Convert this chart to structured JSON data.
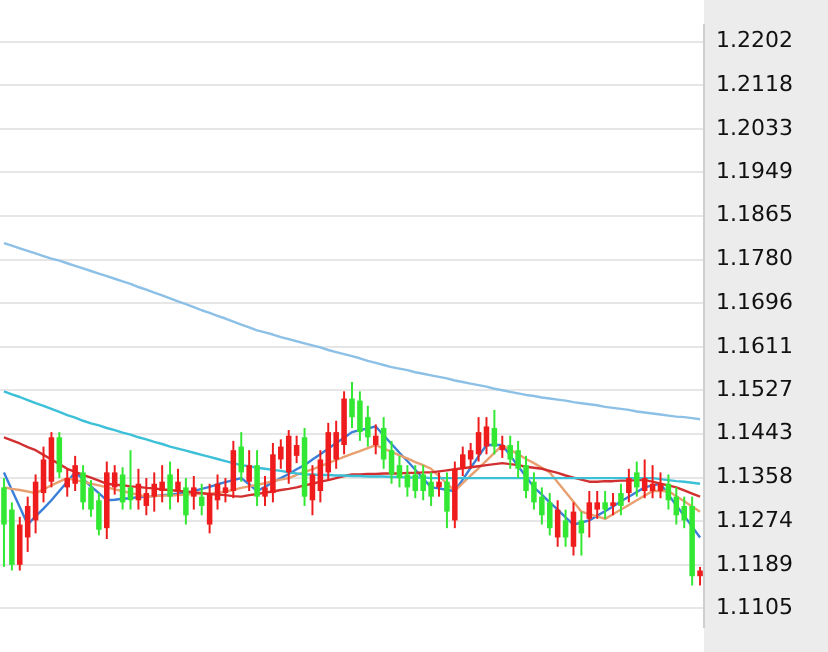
{
  "chart_data": {
    "type": "candlestick",
    "categories": [
      null,
      null,
      null,
      null,
      null,
      null,
      null,
      null,
      null,
      null,
      null,
      null,
      null,
      null,
      null,
      null,
      null,
      null,
      null,
      null,
      null,
      null,
      null,
      null,
      null,
      null,
      null,
      null,
      null,
      null,
      null,
      null,
      null,
      null,
      null,
      null,
      null,
      null,
      null,
      null,
      null,
      null,
      null,
      null,
      null,
      null,
      null,
      null,
      null,
      null,
      null,
      null,
      null,
      null,
      null,
      null,
      null,
      null,
      null,
      null,
      null,
      null,
      null,
      null,
      null,
      null,
      null,
      null,
      null,
      null,
      null,
      null,
      null,
      null,
      null,
      null,
      null,
      null,
      null,
      null,
      null,
      null,
      null,
      null,
      null,
      null,
      null,
      null,
      null
    ],
    "ohlc": [
      [
        1.1339,
        1.1357,
        1.1185,
        1.1267
      ],
      [
        1.1296,
        1.131,
        1.1178,
        1.1189
      ],
      [
        1.1189,
        1.1282,
        1.1178,
        1.1267
      ],
      [
        1.1242,
        1.1321,
        1.1214,
        1.1303
      ],
      [
        1.1275,
        1.1364,
        1.125,
        1.135
      ],
      [
        1.1328,
        1.1418,
        1.131,
        1.1393
      ],
      [
        1.135,
        1.1446,
        1.1339,
        1.1436
      ],
      [
        1.1436,
        1.1446,
        1.1357,
        1.1368
      ],
      [
        1.1339,
        1.1375,
        1.1321,
        1.1357
      ],
      [
        1.1346,
        1.14,
        1.1332,
        1.1382
      ],
      [
        1.1368,
        1.1382,
        1.1296,
        1.131
      ],
      [
        1.1339,
        1.1353,
        1.1282,
        1.1296
      ],
      [
        1.1314,
        1.1328,
        1.1246,
        1.1257
      ],
      [
        1.126,
        1.1389,
        1.1239,
        1.1368
      ],
      [
        1.1339,
        1.1382,
        1.1325,
        1.1368
      ],
      [
        1.1364,
        1.1378,
        1.1296,
        1.131
      ],
      [
        1.1339,
        1.1411,
        1.1296,
        1.1314
      ],
      [
        1.1314,
        1.1375,
        1.1296,
        1.1346
      ],
      [
        1.1303,
        1.1357,
        1.1285,
        1.1328
      ],
      [
        1.1321,
        1.1368,
        1.1292,
        1.1346
      ],
      [
        1.1332,
        1.1382,
        1.131,
        1.135
      ],
      [
        1.1364,
        1.1389,
        1.1296,
        1.1321
      ],
      [
        1.1332,
        1.1375,
        1.131,
        1.135
      ],
      [
        1.1339,
        1.1357,
        1.1267,
        1.1285
      ],
      [
        1.1321,
        1.1361,
        1.1296,
        1.1339
      ],
      [
        1.1321,
        1.1346,
        1.1285,
        1.1303
      ],
      [
        1.1267,
        1.1346,
        1.125,
        1.1328
      ],
      [
        1.1314,
        1.1364,
        1.1296,
        1.1346
      ],
      [
        1.1328,
        1.1357,
        1.131,
        1.1339
      ],
      [
        1.1332,
        1.1429,
        1.1318,
        1.1411
      ],
      [
        1.1418,
        1.1446,
        1.135,
        1.1368
      ],
      [
        1.135,
        1.1411,
        1.1332,
        1.1382
      ],
      [
        1.1382,
        1.1411,
        1.1303,
        1.1321
      ],
      [
        1.1321,
        1.1361,
        1.1303,
        1.1339
      ],
      [
        1.1328,
        1.1425,
        1.131,
        1.1403
      ],
      [
        1.1393,
        1.1432,
        1.1375,
        1.1418
      ],
      [
        1.1368,
        1.145,
        1.1346,
        1.1439
      ],
      [
        1.14,
        1.1439,
        1.1386,
        1.1421
      ],
      [
        1.1436,
        1.1454,
        1.1303,
        1.1321
      ],
      [
        1.1314,
        1.1382,
        1.1285,
        1.1364
      ],
      [
        1.1332,
        1.1411,
        1.131,
        1.1393
      ],
      [
        1.1368,
        1.1464,
        1.1353,
        1.1446
      ],
      [
        1.1393,
        1.1468,
        1.1375,
        1.1446
      ],
      [
        1.1421,
        1.1525,
        1.1403,
        1.1511
      ],
      [
        1.1511,
        1.1543,
        1.1454,
        1.1475
      ],
      [
        1.1507,
        1.1525,
        1.1429,
        1.1446
      ],
      [
        1.1475,
        1.1497,
        1.1418,
        1.1436
      ],
      [
        1.1421,
        1.1461,
        1.1403,
        1.1439
      ],
      [
        1.1454,
        1.1475,
        1.1375,
        1.1393
      ],
      [
        1.1411,
        1.1429,
        1.1346,
        1.1364
      ],
      [
        1.1382,
        1.14,
        1.1339,
        1.1357
      ],
      [
        1.1364,
        1.1382,
        1.1321,
        1.1339
      ],
      [
        1.1364,
        1.1382,
        1.1318,
        1.1332
      ],
      [
        1.1364,
        1.1382,
        1.1314,
        1.1332
      ],
      [
        1.135,
        1.1368,
        1.1303,
        1.1321
      ],
      [
        1.1339,
        1.1368,
        1.1321,
        1.135
      ],
      [
        1.135,
        1.1368,
        1.126,
        1.1292
      ],
      [
        1.1275,
        1.1389,
        1.126,
        1.1375
      ],
      [
        1.1375,
        1.1418,
        1.1361,
        1.1403
      ],
      [
        1.1393,
        1.1425,
        1.1375,
        1.1411
      ],
      [
        1.1403,
        1.1475,
        1.1389,
        1.1446
      ],
      [
        1.1418,
        1.1475,
        1.1403,
        1.1457
      ],
      [
        1.1454,
        1.1489,
        1.1403,
        1.1418
      ],
      [
        1.1411,
        1.1439,
        1.1396,
        1.1421
      ],
      [
        1.1421,
        1.1439,
        1.1375,
        1.1393
      ],
      [
        1.1411,
        1.1429,
        1.1357,
        1.1375
      ],
      [
        1.1382,
        1.14,
        1.1318,
        1.1332
      ],
      [
        1.135,
        1.1368,
        1.1296,
        1.131
      ],
      [
        1.1321,
        1.1339,
        1.1267,
        1.1285
      ],
      [
        1.131,
        1.1328,
        1.1246,
        1.126
      ],
      [
        1.1242,
        1.1314,
        1.1224,
        1.1296
      ],
      [
        1.1275,
        1.1296,
        1.1224,
        1.1242
      ],
      [
        1.1224,
        1.131,
        1.1207,
        1.1292
      ],
      [
        1.1275,
        1.1292,
        1.1207,
        1.125
      ],
      [
        1.1278,
        1.1332,
        1.1242,
        1.131
      ],
      [
        1.1296,
        1.1332,
        1.1278,
        1.131
      ],
      [
        1.131,
        1.1332,
        1.1278,
        1.1296
      ],
      [
        1.1303,
        1.1328,
        1.1285,
        1.131
      ],
      [
        1.1328,
        1.1346,
        1.1285,
        1.1303
      ],
      [
        1.1328,
        1.1375,
        1.131,
        1.1357
      ],
      [
        1.1368,
        1.1389,
        1.1321,
        1.1339
      ],
      [
        1.1332,
        1.1393,
        1.1318,
        1.1357
      ],
      [
        1.1332,
        1.1382,
        1.1318,
        1.1346
      ],
      [
        1.1332,
        1.1368,
        1.1318,
        1.1346
      ],
      [
        1.1346,
        1.1364,
        1.1296,
        1.1314
      ],
      [
        1.1321,
        1.1339,
        1.1267,
        1.1285
      ],
      [
        1.1303,
        1.1321,
        1.126,
        1.1275
      ],
      [
        1.1303,
        1.1321,
        1.1149,
        1.1167
      ],
      [
        1.1167,
        1.1185,
        1.1149,
        1.1178
      ]
    ],
    "colors": [
      "#33e833",
      "#33e833",
      "#ee1c1c",
      "#ee1c1c",
      "#ee1c1c",
      "#ee1c1c",
      "#ee1c1c",
      "#33e833",
      "#ee1c1c",
      "#ee1c1c",
      "#33e833",
      "#33e833",
      "#33e833",
      "#ee1c1c",
      "#ee1c1c",
      "#33e833",
      "#33e833",
      "#ee1c1c",
      "#ee1c1c",
      "#ee1c1c",
      "#ee1c1c",
      "#33e833",
      "#ee1c1c",
      "#33e833",
      "#ee1c1c",
      "#33e833",
      "#ee1c1c",
      "#ee1c1c",
      "#ee1c1c",
      "#ee1c1c",
      "#33e833",
      "#ee1c1c",
      "#33e833",
      "#ee1c1c",
      "#ee1c1c",
      "#ee1c1c",
      "#ee1c1c",
      "#ee1c1c",
      "#33e833",
      "#ee1c1c",
      "#ee1c1c",
      "#ee1c1c",
      "#ee1c1c",
      "#ee1c1c",
      "#33e833",
      "#33e833",
      "#33e833",
      "#ee1c1c",
      "#33e833",
      "#33e833",
      "#33e833",
      "#33e833",
      "#33e833",
      "#33e833",
      "#33e833",
      "#ee1c1c",
      "#33e833",
      "#ee1c1c",
      "#ee1c1c",
      "#ee1c1c",
      "#ee1c1c",
      "#ee1c1c",
      "#33e833",
      "#ee1c1c",
      "#33e833",
      "#33e833",
      "#33e833",
      "#33e833",
      "#33e833",
      "#33e833",
      "#ee1c1c",
      "#33e833",
      "#ee1c1c",
      "#33e833",
      "#ee1c1c",
      "#ee1c1c",
      "#33e833",
      "#ee1c1c",
      "#33e833",
      "#ee1c1c",
      "#33e833",
      "#ee1c1c",
      "#ee1c1c",
      "#ee1c1c",
      "#33e833",
      "#33e833",
      "#33e833",
      "#33e833",
      "#ee1c1c"
    ],
    "series": [
      {
        "type": "line",
        "color": "#8cc0e6",
        "values": [
          1.1812,
          1.1807,
          1.1802,
          1.1797,
          1.1792,
          1.1787,
          1.1782,
          1.1778,
          1.1773,
          1.1768,
          1.1763,
          1.1758,
          1.1753,
          1.1748,
          1.1743,
          1.1738,
          1.1733,
          1.1727,
          1.1722,
          1.1716,
          1.1711,
          1.1705,
          1.1699,
          1.1694,
          1.1688,
          1.1682,
          1.1677,
          1.1671,
          1.1666,
          1.166,
          1.1654,
          1.1649,
          1.1643,
          1.1639,
          1.1635,
          1.163,
          1.1626,
          1.1622,
          1.1618,
          1.1614,
          1.161,
          1.1605,
          1.1601,
          1.1597,
          1.1593,
          1.1589,
          1.1584,
          1.158,
          1.1576,
          1.1572,
          1.1569,
          1.1566,
          1.1562,
          1.1559,
          1.1556,
          1.1553,
          1.155,
          1.1546,
          1.1543,
          1.154,
          1.1537,
          1.1534,
          1.153,
          1.1527,
          1.1524,
          1.1521,
          1.1518,
          1.1516,
          1.1513,
          1.1511,
          1.1509,
          1.1507,
          1.1504,
          1.1502,
          1.15,
          1.1498,
          1.1495,
          1.1493,
          1.1491,
          1.1489,
          1.1486,
          1.1484,
          1.1482,
          1.148,
          1.1478,
          1.1476,
          1.1475,
          1.1473,
          1.1471
        ]
      },
      {
        "type": "line",
        "color": "#3cc0d8",
        "values": [
          1.1525,
          1.1519,
          1.1514,
          1.1508,
          1.1502,
          1.1497,
          1.1491,
          1.1485,
          1.1479,
          1.1474,
          1.1468,
          1.1463,
          1.1459,
          1.1454,
          1.145,
          1.1445,
          1.1441,
          1.1436,
          1.1432,
          1.1427,
          1.1423,
          1.1418,
          1.1414,
          1.141,
          1.1406,
          1.1402,
          1.1398,
          1.1394,
          1.139,
          1.1386,
          1.1382,
          1.138,
          1.1377,
          1.1375,
          1.1373,
          1.1371,
          1.1368,
          1.1366,
          1.1364,
          1.1364,
          1.1363,
          1.1363,
          1.1362,
          1.1362,
          1.1361,
          1.1361,
          1.136,
          1.136,
          1.136,
          1.1359,
          1.1359,
          1.1358,
          1.1358,
          1.1358,
          1.1357,
          1.1357,
          1.1357,
          1.1357,
          1.1357,
          1.1357,
          1.1357,
          1.1357,
          1.1357,
          1.1357,
          1.1357,
          1.1357,
          1.1357,
          1.1357,
          1.1357,
          1.1357,
          1.1357,
          1.1357,
          1.1357,
          1.1357,
          1.1357,
          1.1357,
          1.1357,
          1.1357,
          1.1357,
          1.1357,
          1.1357,
          1.1357,
          1.1357,
          1.1355,
          1.1353,
          1.1351,
          1.135,
          1.1348,
          1.1346
        ]
      },
      {
        "type": "line",
        "color": "#d23030",
        "values": [
          1.1436,
          1.143,
          1.1424,
          1.1417,
          1.1411,
          1.1402,
          1.1393,
          1.1384,
          1.1375,
          1.1369,
          1.1363,
          1.1358,
          1.1352,
          1.1346,
          1.1344,
          1.1343,
          1.1341,
          1.134,
          1.1338,
          1.1337,
          1.1335,
          1.1334,
          1.1332,
          1.1331,
          1.1329,
          1.1328,
          1.1326,
          1.1325,
          1.1324,
          1.1322,
          1.1321,
          1.1324,
          1.1326,
          1.1329,
          1.1331,
          1.1334,
          1.1336,
          1.1339,
          1.1343,
          1.1346,
          1.135,
          1.1353,
          1.1357,
          1.1361,
          1.1364,
          1.1364,
          1.1365,
          1.1365,
          1.1366,
          1.1366,
          1.1366,
          1.1367,
          1.1367,
          1.1368,
          1.1368,
          1.137,
          1.1372,
          1.1374,
          1.1376,
          1.1378,
          1.138,
          1.1382,
          1.1384,
          1.1386,
          1.1384,
          1.1382,
          1.1379,
          1.1377,
          1.1375,
          1.1371,
          1.1367,
          1.1362,
          1.1358,
          1.1354,
          1.135,
          1.135,
          1.1351,
          1.1351,
          1.1352,
          1.1352,
          1.1353,
          1.1353,
          1.135,
          1.1346,
          1.1343,
          1.1339,
          1.1333,
          1.1327,
          1.1321
        ]
      },
      {
        "type": "line",
        "color": "#e8a070",
        "values": [
          1.1339,
          1.1336,
          1.1334,
          1.1331,
          1.1328,
          1.1335,
          1.1343,
          1.135,
          1.1357,
          1.1353,
          1.135,
          1.1346,
          1.1343,
          1.1339,
          1.1335,
          1.1332,
          1.1328,
          1.1325,
          1.1321,
          1.1322,
          1.1323,
          1.1323,
          1.1324,
          1.1325,
          1.1326,
          1.1326,
          1.1327,
          1.1328,
          1.1331,
          1.1334,
          1.1338,
          1.1341,
          1.1344,
          1.1347,
          1.1351,
          1.1354,
          1.1357,
          1.1363,
          1.1369,
          1.1374,
          1.138,
          1.1386,
          1.1392,
          1.1398,
          1.1404,
          1.1409,
          1.1415,
          1.1421,
          1.1414,
          1.1408,
          1.1401,
          1.1395,
          1.1388,
          1.1382,
          1.1375,
          1.1361,
          1.1346,
          1.1332,
          1.1347,
          1.1362,
          1.1376,
          1.1391,
          1.1406,
          1.1421,
          1.1412,
          1.1403,
          1.1394,
          1.1386,
          1.1377,
          1.1368,
          1.1349,
          1.133,
          1.1311,
          1.1292,
          1.1287,
          1.1283,
          1.1278,
          1.1287,
          1.1296,
          1.1305,
          1.1314,
          1.1323,
          1.1332,
          1.1332,
          1.1332,
          1.1322,
          1.1312,
          1.1302,
          1.1292
        ]
      },
      {
        "type": "line",
        "color": "#3a7fd8",
        "values": [
          1.1368,
          1.1334,
          1.1301,
          1.1267,
          1.1283,
          1.1298,
          1.1314,
          1.1332,
          1.135,
          1.1368,
          1.1355,
          1.1341,
          1.1328,
          1.1314,
          1.1315,
          1.1317,
          1.1318,
          1.132,
          1.1321,
          1.1322,
          1.1324,
          1.1325,
          1.1327,
          1.1328,
          1.1332,
          1.1336,
          1.134,
          1.1345,
          1.1349,
          1.1353,
          1.1357,
          1.1345,
          1.1332,
          1.134,
          1.1349,
          1.1357,
          1.1365,
          1.1374,
          1.1382,
          1.1393,
          1.1403,
          1.1414,
          1.1425,
          1.1435,
          1.1446,
          1.145,
          1.1453,
          1.1457,
          1.144,
          1.1423,
          1.1406,
          1.139,
          1.1373,
          1.1356,
          1.1339,
          1.1337,
          1.1334,
          1.1332,
          1.1354,
          1.1377,
          1.1399,
          1.1421,
          1.1421,
          1.1421,
          1.1401,
          1.138,
          1.136,
          1.1339,
          1.1325,
          1.131,
          1.1296,
          1.1281,
          1.1267,
          1.1271,
          1.1275,
          1.1284,
          1.1293,
          1.1302,
          1.1312,
          1.1321,
          1.133,
          1.1339,
          1.1343,
          1.1346,
          1.1325,
          1.1304,
          1.1284,
          1.1263,
          1.1242
        ]
      }
    ],
    "ylim": [
      1.1069,
      1.2234
    ],
    "yticks": [
      1.2202,
      1.2118,
      1.2033,
      1.1949,
      1.1865,
      {
        "value": 1.178,
        "label": "1.1780"
      },
      1.1696,
      1.1611,
      1.1527,
      1.1443,
      1.1358,
      1.1274,
      1.1189,
      1.1105
    ],
    "grid": "y",
    "tick_labels": "y",
    "marker": "none"
  }
}
